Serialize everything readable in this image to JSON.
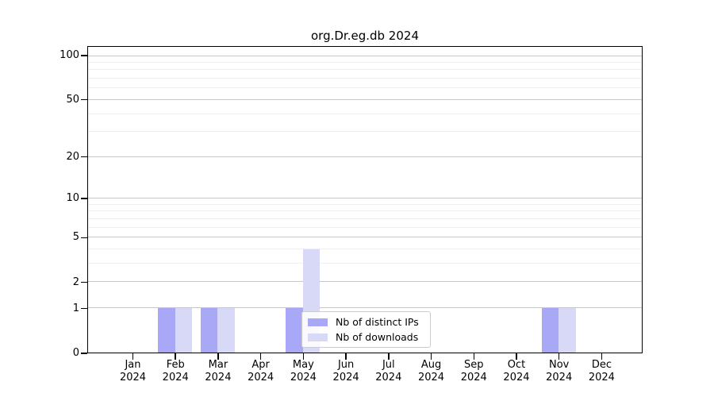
{
  "title": "org.Dr.eg.db 2024",
  "chart_data": {
    "type": "bar",
    "title": "org.Dr.eg.db 2024",
    "categories": [
      "Jan",
      "Feb",
      "Mar",
      "Apr",
      "May",
      "Jun",
      "Jul",
      "Aug",
      "Sep",
      "Oct",
      "Nov",
      "Dec"
    ],
    "x_tick_year": "2024",
    "series": [
      {
        "name": "Nb of distinct IPs",
        "color": "#a8a8f7",
        "values": [
          0,
          1,
          1,
          0,
          1,
          0,
          0,
          0,
          0,
          0,
          1,
          0
        ]
      },
      {
        "name": "Nb of downloads",
        "color": "#d8d8f7",
        "values": [
          0,
          1,
          1,
          0,
          4,
          0,
          0,
          0,
          0,
          0,
          1,
          0
        ]
      }
    ],
    "y_scale": "log1p",
    "ylim": [
      0,
      116
    ],
    "y_ticks": [
      100,
      50,
      20,
      10,
      5,
      2,
      1,
      0
    ],
    "y_minor_gridlines": [
      3,
      4,
      6,
      7,
      8,
      9,
      30,
      40,
      60,
      70,
      80,
      90
    ],
    "grid": "horizontal",
    "legend_position": "inside lower-center",
    "colors": {
      "bar_distinct_ips": "#a8a8f7",
      "bar_downloads": "#d8d8f7",
      "grid_major": "#c6c6c6",
      "grid_minor": "#efefef",
      "axis": "#000000"
    }
  }
}
